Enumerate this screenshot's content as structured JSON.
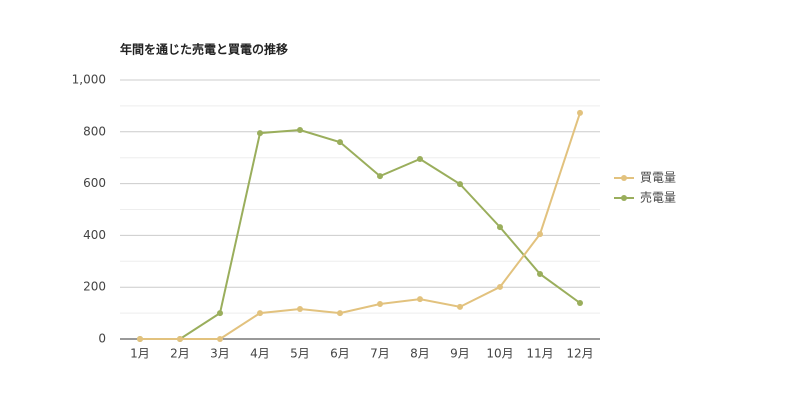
{
  "chart_data": {
    "type": "line",
    "title": "年間を通じた売電と買電の推移",
    "categories": [
      "1月",
      "2月",
      "3月",
      "4月",
      "5月",
      "6月",
      "7月",
      "8月",
      "9月",
      "10月",
      "11月",
      "12月"
    ],
    "series": [
      {
        "name": "買電量",
        "color": "#e2c27e",
        "values": [
          0,
          0,
          0,
          100,
          116,
          100,
          135,
          154,
          124,
          201,
          405,
          873
        ]
      },
      {
        "name": "売電量",
        "color": "#9aae5c",
        "values": [
          0,
          0,
          100,
          795,
          807,
          760,
          629,
          695,
          598,
          432,
          251,
          139
        ]
      }
    ],
    "ylim": [
      0,
      1000
    ],
    "yticks": [
      0,
      200,
      400,
      600,
      800,
      {
        "value": 1000,
        "label": "1,000"
      }
    ],
    "grid": true,
    "minor_grid": true,
    "legend": "right"
  }
}
